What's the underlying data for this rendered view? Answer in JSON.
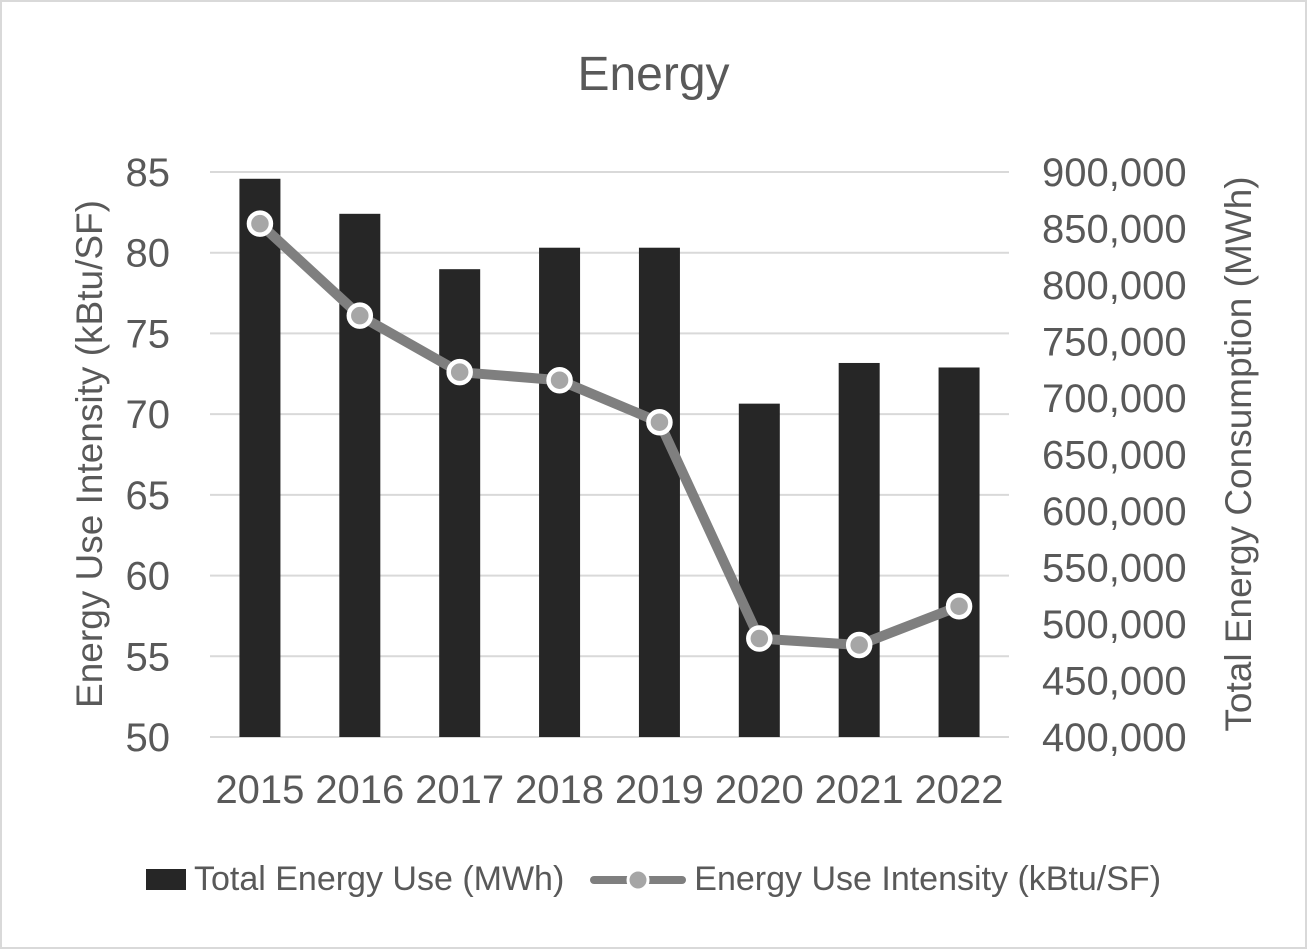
{
  "frame": {
    "title": "Energy"
  },
  "colors": {
    "bar": "#262626",
    "line": "#7f7f7f",
    "marker_fill": "#a6a6a6",
    "marker_ring": "#ffffff",
    "grid": "#d9d9d9",
    "text": "#595959",
    "frame_border": "#d9d9d9",
    "background": "#ffffff"
  },
  "legend": {
    "items": [
      {
        "label": "Total Energy Use (MWh)",
        "swatch": "black-bar"
      },
      {
        "label": "Energy Use Intensity (kBtu/SF)",
        "swatch": "gray-line-with-marker"
      }
    ]
  },
  "chart_data": {
    "type": "combo-bar-line",
    "title": "Energy",
    "categories": [
      "2015",
      "2016",
      "2017",
      "2018",
      "2019",
      "2020",
      "2021",
      "2022"
    ],
    "series": [
      {
        "name": "Total Energy Use (MWh)",
        "type": "bar",
        "axis": "right",
        "values": [
          894000,
          863000,
          814000,
          833000,
          833000,
          695000,
          731000,
          727000
        ]
      },
      {
        "name": "Energy Use Intensity (kBtu/SF)",
        "type": "line",
        "axis": "left",
        "values": [
          81.8,
          76.1,
          72.6,
          72.1,
          69.5,
          56.1,
          55.7,
          58.1
        ]
      }
    ],
    "left_axis": {
      "label": "Energy Use Intensity (kBtu/SF)",
      "min": 50,
      "max": 85,
      "step": 5,
      "tick_labels": [
        "85",
        "80",
        "75",
        "70",
        "65",
        "60",
        "55",
        "50"
      ]
    },
    "right_axis": {
      "label": "Total Energy Consumption (MWh)",
      "min": 400000,
      "max": 900000,
      "step": 50000,
      "tick_labels": [
        "900,000",
        "850,000",
        "800,000",
        "750,000",
        "700,000",
        "650,000",
        "600,000",
        "550,000",
        "500,000",
        "450,000",
        "400,000"
      ]
    },
    "x_axis": {
      "tick_labels": [
        "2015",
        "2016",
        "2017",
        "2018",
        "2019",
        "2020",
        "2021",
        "2022"
      ]
    },
    "grid": {
      "horizontal": true,
      "aligned_to": "left_axis"
    },
    "legend_position": "bottom"
  }
}
